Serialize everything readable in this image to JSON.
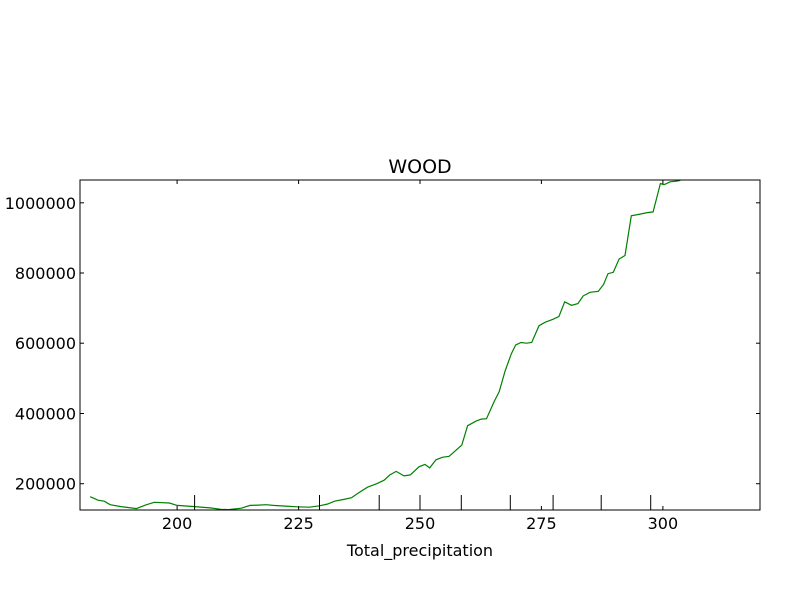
{
  "chart_data": {
    "type": "line",
    "title": "WOOD",
    "xlabel": "Total_precipitation",
    "ylabel": "",
    "xlim": [
      180,
      320
    ],
    "ylim": [
      125000,
      1065000
    ],
    "xticks": [
      200,
      225,
      250,
      275,
      300
    ],
    "yticks": [
      200000,
      400000,
      600000,
      800000,
      1000000
    ],
    "rug_x": [
      203.6,
      229.3,
      241.6,
      250.0,
      258.5,
      268.6,
      277.4,
      287.3,
      297.5
    ],
    "grid": false,
    "legend": "none",
    "series": [
      {
        "color": "#008000",
        "x": [
          182.1,
          183.7,
          185.0,
          186.2,
          188.3,
          191.6,
          193.7,
          195.3,
          198.4,
          200.0,
          203.3,
          206.8,
          209.0,
          210.6,
          213.2,
          215.0,
          216.8,
          218.3,
          219.8,
          222.3,
          224.7,
          227.2,
          229.3,
          231.0,
          232.4,
          234.2,
          235.9,
          237.5,
          239.2,
          241.1,
          242.6,
          243.8,
          245.1,
          246.7,
          248.0,
          249.8,
          251.0,
          252.0,
          253.3,
          254.6,
          256.0,
          257.4,
          258.6,
          259.8,
          261.5,
          262.6,
          263.7,
          265.3,
          266.3,
          267.5,
          268.8,
          269.7,
          270.8,
          271.9,
          273.0,
          274.5,
          275.8,
          277.3,
          278.6,
          279.8,
          281.2,
          282.5,
          283.6,
          285.0,
          286.7,
          287.8,
          288.7,
          289.8,
          291.0,
          292.2,
          293.5,
          295.3,
          296.8,
          298.0,
          299.5,
          300.2,
          300.6,
          301.5,
          302.8,
          303.6
        ],
        "y": [
          163000,
          153000,
          150000,
          140000,
          135000,
          129000,
          140000,
          147000,
          145000,
          138000,
          135000,
          131000,
          127000,
          126000,
          130000,
          138000,
          139000,
          140000,
          138000,
          136000,
          134000,
          133000,
          137000,
          142000,
          150000,
          155000,
          160000,
          175000,
          190000,
          200000,
          210000,
          225000,
          235000,
          222000,
          225000,
          248000,
          255000,
          245000,
          268000,
          275000,
          278000,
          295000,
          310000,
          365000,
          378000,
          384000,
          385000,
          435000,
          462000,
          520000,
          570000,
          595000,
          602000,
          600000,
          602000,
          650000,
          660000,
          668000,
          676000,
          718000,
          708000,
          713000,
          735000,
          745000,
          748000,
          768000,
          798000,
          802000,
          840000,
          850000,
          963000,
          968000,
          972000,
          974000,
          1055000,
          1052000,
          1054000,
          1060000,
          1062000,
          1064000
        ]
      }
    ]
  }
}
